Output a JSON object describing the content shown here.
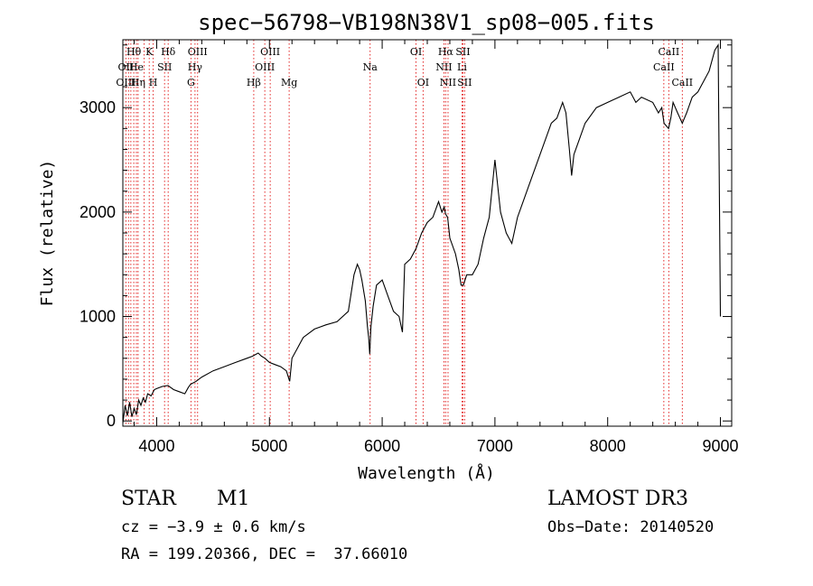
{
  "chart_data": {
    "type": "line",
    "title": "spec−56798−VB198N38V1_sp08−005.fits",
    "xlabel": "Wavelength (Å)",
    "ylabel": "Flux (relative)",
    "xlim": [
      3700,
      9100
    ],
    "ylim": [
      -50,
      3650
    ],
    "x_ticks": [
      4000,
      5000,
      6000,
      7000,
      8000,
      9000
    ],
    "y_ticks": [
      0,
      1000,
      2000,
      3000
    ],
    "x_tick_labels": [
      "4000",
      "5000",
      "6000",
      "7000",
      "8000",
      "9000"
    ],
    "y_tick_labels": [
      "0",
      "1000",
      "2000",
      "3000"
    ],
    "series": [
      {
        "name": "flux",
        "x": [
          3700,
          3720,
          3740,
          3760,
          3780,
          3800,
          3820,
          3840,
          3860,
          3880,
          3900,
          3920,
          3950,
          3980,
          4000,
          4050,
          4100,
          4150,
          4200,
          4250,
          4280,
          4300,
          4350,
          4400,
          4500,
          4600,
          4700,
          4800,
          4850,
          4900,
          4930,
          4960,
          5000,
          5050,
          5100,
          5150,
          5180,
          5200,
          5250,
          5300,
          5400,
          5450,
          5500,
          5600,
          5700,
          5750,
          5780,
          5800,
          5820,
          5850,
          5870,
          5880,
          5890,
          5900,
          5920,
          5950,
          6000,
          6050,
          6100,
          6150,
          6180,
          6200,
          6250,
          6300,
          6350,
          6400,
          6450,
          6500,
          6530,
          6550,
          6563,
          6580,
          6600,
          6650,
          6680,
          6700,
          6720,
          6750,
          6800,
          6850,
          6900,
          6950,
          7000,
          7050,
          7100,
          7150,
          7200,
          7250,
          7300,
          7400,
          7500,
          7550,
          7600,
          7630,
          7660,
          7680,
          7700,
          7750,
          7800,
          7900,
          8000,
          8100,
          8200,
          8250,
          8300,
          8400,
          8450,
          8480,
          8500,
          8540,
          8560,
          8580,
          8620,
          8662,
          8700,
          8750,
          8800,
          8850,
          8900,
          8950,
          8980,
          9000
        ],
        "y": [
          -20,
          150,
          50,
          180,
          40,
          120,
          60,
          200,
          150,
          220,
          180,
          260,
          240,
          300,
          310,
          330,
          340,
          300,
          280,
          260,
          320,
          350,
          380,
          420,
          480,
          520,
          560,
          600,
          620,
          650,
          620,
          600,
          560,
          540,
          520,
          480,
          380,
          600,
          700,
          800,
          880,
          900,
          920,
          950,
          1050,
          1400,
          1500,
          1450,
          1350,
          1150,
          900,
          800,
          640,
          900,
          1100,
          1300,
          1350,
          1200,
          1050,
          1000,
          850,
          1500,
          1550,
          1650,
          1800,
          1900,
          1950,
          2100,
          2000,
          2050,
          1980,
          1950,
          1750,
          1600,
          1450,
          1300,
          1300,
          1400,
          1400,
          1500,
          1750,
          1950,
          2500,
          2000,
          1800,
          1700,
          1950,
          2100,
          2250,
          2550,
          2850,
          2900,
          3050,
          2950,
          2600,
          2350,
          2550,
          2700,
          2850,
          3000,
          3050,
          3100,
          3150,
          3050,
          3100,
          3050,
          2950,
          3000,
          2850,
          2800,
          2900,
          3050,
          2950,
          2850,
          2950,
          3100,
          3150,
          3250,
          3350,
          3550,
          3600,
          1000
        ]
      }
    ],
    "line_labels": [
      {
        "label": "Hθ",
        "x": 3797,
        "row": 1
      },
      {
        "label": "OII",
        "x": 3727,
        "row": 2
      },
      {
        "label": "OIII",
        "x": 3727,
        "row": 3
      },
      {
        "label": "K",
        "x": 3934,
        "row": 1
      },
      {
        "label": "He",
        "x": 3820,
        "row": 2
      },
      {
        "label": "Hη",
        "x": 3835,
        "row": 3
      },
      {
        "label": "H",
        "x": 3969,
        "row": 3
      },
      {
        "label": "SII",
        "x": 4070,
        "row": 2
      },
      {
        "label": "Hδ",
        "x": 4102,
        "row": 1
      },
      {
        "label": "OIII",
        "x": 4363,
        "row": 1
      },
      {
        "label": "Hγ",
        "x": 4340,
        "row": 2
      },
      {
        "label": "G",
        "x": 4304,
        "row": 3
      },
      {
        "label": "OIII",
        "x": 5007,
        "row": 1
      },
      {
        "label": "OIII",
        "x": 4959,
        "row": 2
      },
      {
        "label": "Hβ",
        "x": 4861,
        "row": 3
      },
      {
        "label": "Mg",
        "x": 5175,
        "row": 3
      },
      {
        "label": "Na",
        "x": 5893,
        "row": 2
      },
      {
        "label": "OI",
        "x": 6300,
        "row": 1
      },
      {
        "label": "OI",
        "x": 6363,
        "row": 3
      },
      {
        "label": "Hα",
        "x": 6563,
        "row": 1
      },
      {
        "label": "NII",
        "x": 6548,
        "row": 2
      },
      {
        "label": "NII",
        "x": 6584,
        "row": 3
      },
      {
        "label": "SII",
        "x": 6716,
        "row": 1
      },
      {
        "label": "Li",
        "x": 6708,
        "row": 2
      },
      {
        "label": "SII",
        "x": 6731,
        "row": 3
      },
      {
        "label": "CaII",
        "x": 8542,
        "row": 1
      },
      {
        "label": "CaII",
        "x": 8498,
        "row": 2
      },
      {
        "label": "CaII",
        "x": 8662,
        "row": 3
      }
    ],
    "line_markers": [
      3727,
      3750,
      3771,
      3797,
      3820,
      3835,
      3889,
      3934,
      3969,
      4070,
      4102,
      4304,
      4340,
      4363,
      4861,
      4959,
      5007,
      5175,
      5893,
      6300,
      6363,
      6548,
      6563,
      6584,
      6708,
      6716,
      6731,
      8498,
      8542,
      8662
    ],
    "line_color": "#e01010"
  },
  "info": {
    "object_class": "STAR",
    "subclass": "M1",
    "survey": "LAMOST DR3",
    "cz": "cz = −3.9 ± 0.6 km/s",
    "obs_date": "Obs−Date: 20140520",
    "coords": "RA = 199.20366, DEC =  37.66010"
  }
}
